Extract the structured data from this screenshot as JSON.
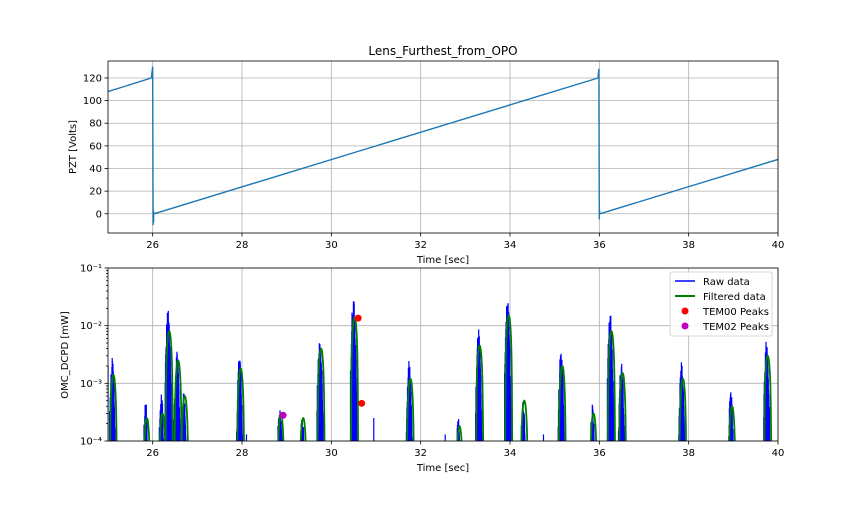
{
  "chart_data": [
    {
      "type": "line",
      "title": "Lens_Furthest_from_OPO",
      "xlabel": "Time [sec]",
      "ylabel": "PZT [Volts]",
      "xlim": [
        25,
        40
      ],
      "ylim": [
        -17,
        135
      ],
      "xticks": [
        26,
        28,
        30,
        32,
        34,
        36,
        38,
        40
      ],
      "yticks": [
        0,
        20,
        40,
        60,
        80,
        100,
        120
      ],
      "grid": true,
      "color": "#1f77b4",
      "series": [
        {
          "x": [
            25,
            25.97,
            26.0,
            26.0,
            26.01,
            26.01,
            26.02,
            26.02,
            26.03,
            35.97,
            35.99,
            35.99,
            36.0,
            36.0,
            36.01,
            40
          ],
          "y": [
            108,
            120,
            130,
            118,
            -10,
            5,
            -8,
            2,
            0,
            120,
            128,
            118,
            -5,
            5,
            0,
            48
          ]
        }
      ]
    },
    {
      "type": "line",
      "xlabel": "Time [sec]",
      "ylabel": "OMC_DCPD [mW]",
      "xlim": [
        25,
        40
      ],
      "ylog": true,
      "ylim": [
        0.0001,
        0.1
      ],
      "xticks": [
        26,
        28,
        30,
        32,
        34,
        36,
        38,
        40
      ],
      "yticks": [
        0.0001,
        0.001,
        0.01,
        0.1
      ],
      "ytick_labels": [
        "10⁻⁴",
        "10⁻³",
        "10⁻²",
        "10⁻¹"
      ],
      "grid": true,
      "legend": "top-right",
      "legend_entries": [
        "Raw data",
        "Filtered data",
        "TEM00 Peaks",
        "TEM02 Peaks"
      ],
      "colors": {
        "raw": "#0000ff",
        "filtered": "#008000",
        "tem00": "#ff0000",
        "tem02": "#bf00bf"
      },
      "bursts": [
        {
          "x": 25.1,
          "raw": 0.0028,
          "filtered": 0.0014
        },
        {
          "x": 25.85,
          "raw": 0.0005,
          "filtered": 0.00025
        },
        {
          "x": 26.2,
          "raw": 0.0007,
          "filtered": 0.0003
        },
        {
          "x": 26.35,
          "raw": 0.02,
          "filtered": 0.008
        },
        {
          "x": 26.55,
          "raw": 0.004,
          "filtered": 0.0025
        },
        {
          "x": 26.7,
          "raw": 0.0007,
          "filtered": 0.0006
        },
        {
          "x": 27.95,
          "raw": 0.003,
          "filtered": 0.0018
        },
        {
          "x": 28.85,
          "raw": 0.0005,
          "filtered": 0.0003
        },
        {
          "x": 29.35,
          "raw": 0.00035,
          "filtered": 0.00025
        },
        {
          "x": 29.75,
          "raw": 0.008,
          "filtered": 0.004
        },
        {
          "x": 30.5,
          "raw": 0.032,
          "filtered": 0.014
        },
        {
          "x": 31.75,
          "raw": 0.0025,
          "filtered": 0.0012
        },
        {
          "x": 32.85,
          "raw": 0.00025,
          "filtered": 0.00018
        },
        {
          "x": 33.3,
          "raw": 0.009,
          "filtered": 0.0045
        },
        {
          "x": 33.95,
          "raw": 0.03,
          "filtered": 0.015
        },
        {
          "x": 34.3,
          "raw": 0.0005,
          "filtered": 0.0005
        },
        {
          "x": 35.15,
          "raw": 0.004,
          "filtered": 0.002
        },
        {
          "x": 35.85,
          "raw": 0.0005,
          "filtered": 0.0003
        },
        {
          "x": 36.25,
          "raw": 0.02,
          "filtered": 0.008
        },
        {
          "x": 36.5,
          "raw": 0.003,
          "filtered": 0.0015
        },
        {
          "x": 37.85,
          "raw": 0.0025,
          "filtered": 0.0012
        },
        {
          "x": 38.95,
          "raw": 0.0008,
          "filtered": 0.0004
        },
        {
          "x": 39.75,
          "raw": 0.006,
          "filtered": 0.003
        }
      ],
      "spikes": [
        {
          "x": 25.0,
          "y": 0.002
        },
        {
          "x": 26.78,
          "y": 0.00013
        },
        {
          "x": 28.1,
          "y": 0.00013
        },
        {
          "x": 30.95,
          "y": 0.00025
        },
        {
          "x": 32.55,
          "y": 0.00013
        },
        {
          "x": 34.75,
          "y": 0.00013
        }
      ],
      "tem00_peaks": [
        {
          "x": 30.6,
          "y": 0.0135
        },
        {
          "x": 30.68,
          "y": 0.00045
        }
      ],
      "tem02_peaks": [
        {
          "x": 28.92,
          "y": 0.00028
        }
      ]
    }
  ]
}
